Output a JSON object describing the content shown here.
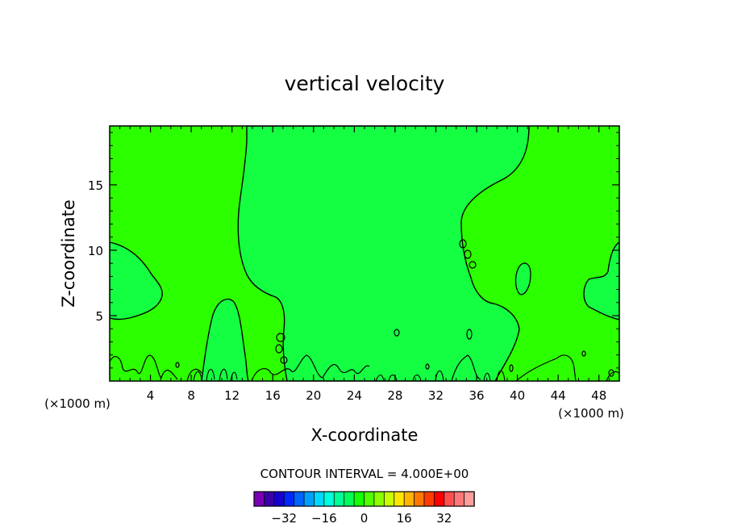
{
  "chart_data": {
    "type": "contour",
    "title": "vertical velocity",
    "xlabel": "X-coordinate",
    "ylabel": "Z-coordinate",
    "x_unit_left": "(×1000 m)",
    "x_unit_right": "(×1000 m)",
    "xlim": [
      0,
      50
    ],
    "ylim": [
      0,
      19.5
    ],
    "x_ticks": [
      4,
      8,
      12,
      16,
      20,
      24,
      28,
      32,
      36,
      40,
      44,
      48
    ],
    "y_ticks": [
      5,
      10,
      15
    ],
    "grid": false,
    "contour_interval_text": "CONTOUR INTERVAL = 4.000E+00",
    "colorbar": {
      "colors": [
        "#7a00b4",
        "#3a00a8",
        "#1600d0",
        "#0028ff",
        "#0064ff",
        "#00a0ff",
        "#00d8ff",
        "#00ffdc",
        "#00ff96",
        "#00ff5a",
        "#14ff00",
        "#50ff00",
        "#8cff00",
        "#c8ff00",
        "#ffe600",
        "#ffb400",
        "#ff7800",
        "#ff3c00",
        "#ff0000",
        "#ff5050",
        "#ff7878",
        "#ff9c9c"
      ],
      "tick_labels": [
        "−32",
        "−16",
        "0",
        "16",
        "32"
      ],
      "tick_values": [
        -32,
        -16,
        0,
        16,
        32
      ]
    },
    "fill_colors": {
      "background_level": "#2cff00",
      "light_level": "#14ff42"
    }
  }
}
